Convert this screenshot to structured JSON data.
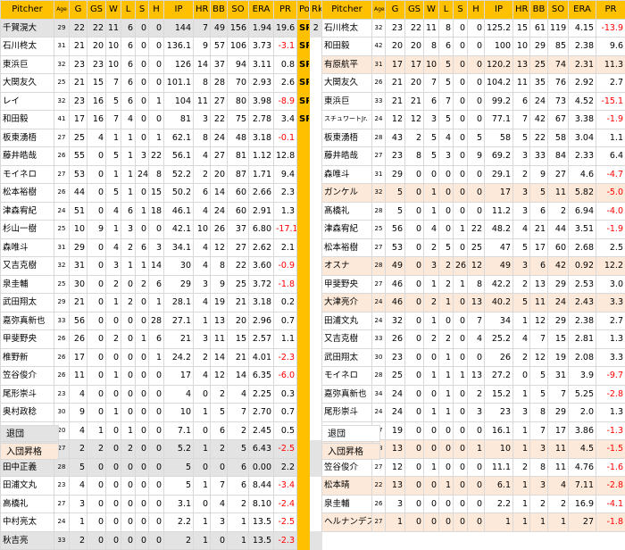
{
  "headers_left": [
    "Pitcher",
    "Age",
    "G",
    "GS",
    "W",
    "L",
    "S",
    "H",
    "IP",
    "HR",
    "BB",
    "SO",
    "ERA",
    "PR",
    "Po",
    "Rk"
  ],
  "headers_right": [
    "Pitcher",
    "Age",
    "G",
    "GS",
    "W",
    "L",
    "S",
    "H",
    "IP",
    "HR",
    "BB",
    "SO",
    "ERA",
    "PR"
  ],
  "left_rows": [
    {
      "style": "gray",
      "pos": "SP",
      "c": [
        "千賀滉大",
        "29",
        "22",
        "22",
        "11",
        "6",
        "0",
        "0",
        "144",
        "7",
        "49",
        "156",
        "1.94",
        "19.6",
        "2"
      ]
    },
    {
      "style": "",
      "pos": "SP",
      "c": [
        "石川柊太",
        "31",
        "21",
        "20",
        "10",
        "6",
        "0",
        "0",
        "136.1",
        "9",
        "57",
        "106",
        "3.73",
        "-3.1",
        ""
      ]
    },
    {
      "style": "",
      "pos": "SP",
      "c": [
        "東浜巨",
        "32",
        "23",
        "23",
        "10",
        "6",
        "0",
        "0",
        "126",
        "14",
        "37",
        "94",
        "3.11",
        "0.8",
        ""
      ]
    },
    {
      "style": "",
      "pos": "SP",
      "c": [
        "大関友久",
        "25",
        "21",
        "15",
        "7",
        "6",
        "0",
        "0",
        "101.1",
        "8",
        "28",
        "70",
        "2.93",
        "2.6",
        ""
      ]
    },
    {
      "style": "",
      "pos": "SP",
      "c": [
        "レイ",
        "32",
        "23",
        "16",
        "5",
        "6",
        "0",
        "1",
        "104",
        "11",
        "27",
        "80",
        "3.98",
        "-8.9",
        ""
      ]
    },
    {
      "style": "",
      "pos": "SP",
      "c": [
        "和田毅",
        "41",
        "17",
        "16",
        "7",
        "4",
        "0",
        "0",
        "81",
        "3",
        "22",
        "75",
        "2.78",
        "3.4",
        ""
      ]
    },
    {
      "style": "",
      "pos": "",
      "c": [
        "板東湧梧",
        "27",
        "25",
        "4",
        "1",
        "1",
        "0",
        "1",
        "62.1",
        "8",
        "24",
        "48",
        "3.18",
        "-0.1",
        ""
      ]
    },
    {
      "style": "",
      "pos": "",
      "c": [
        "藤井皓哉",
        "26",
        "55",
        "0",
        "5",
        "1",
        "3",
        "22",
        "56.1",
        "4",
        "27",
        "81",
        "1.12",
        "12.8",
        ""
      ]
    },
    {
      "style": "",
      "pos": "",
      "c": [
        "モイネロ",
        "27",
        "53",
        "0",
        "1",
        "1",
        "24",
        "8",
        "52.2",
        "2",
        "20",
        "87",
        "1.71",
        "9.4",
        ""
      ]
    },
    {
      "style": "",
      "pos": "",
      "c": [
        "松本裕樹",
        "26",
        "44",
        "0",
        "5",
        "1",
        "0",
        "15",
        "50.2",
        "6",
        "14",
        "60",
        "2.66",
        "2.3",
        ""
      ]
    },
    {
      "style": "",
      "pos": "",
      "c": [
        "津森宥紀",
        "24",
        "51",
        "0",
        "4",
        "6",
        "1",
        "18",
        "46.1",
        "4",
        "24",
        "60",
        "2.91",
        "1.3",
        ""
      ]
    },
    {
      "style": "",
      "pos": "",
      "c": [
        "杉山一樹",
        "25",
        "10",
        "9",
        "1",
        "3",
        "0",
        "0",
        "42.1",
        "10",
        "26",
        "37",
        "6.80",
        "-17.1",
        ""
      ]
    },
    {
      "style": "",
      "pos": "",
      "c": [
        "森唯斗",
        "31",
        "29",
        "0",
        "4",
        "2",
        "6",
        "3",
        "34.1",
        "4",
        "12",
        "27",
        "2.62",
        "2.1",
        ""
      ]
    },
    {
      "style": "",
      "pos": "",
      "c": [
        "又吉克樹",
        "32",
        "31",
        "0",
        "3",
        "1",
        "1",
        "14",
        "30",
        "4",
        "8",
        "22",
        "3.60",
        "-0.9",
        ""
      ]
    },
    {
      "style": "",
      "pos": "",
      "c": [
        "泉圭輔",
        "25",
        "30",
        "0",
        "2",
        "0",
        "2",
        "6",
        "29",
        "3",
        "9",
        "25",
        "3.72",
        "-1.8",
        ""
      ]
    },
    {
      "style": "",
      "pos": "",
      "c": [
        "武田翔太",
        "29",
        "21",
        "0",
        "1",
        "2",
        "0",
        "1",
        "28.1",
        "4",
        "19",
        "21",
        "3.18",
        "0.2",
        ""
      ]
    },
    {
      "style": "",
      "pos": "",
      "c": [
        "嘉弥真新也",
        "33",
        "56",
        "0",
        "0",
        "0",
        "0",
        "28",
        "27.1",
        "1",
        "13",
        "20",
        "2.96",
        "0.7",
        ""
      ]
    },
    {
      "style": "",
      "pos": "",
      "c": [
        "甲斐野央",
        "26",
        "26",
        "0",
        "2",
        "0",
        "1",
        "6",
        "21",
        "3",
        "11",
        "15",
        "2.57",
        "1.1",
        ""
      ]
    },
    {
      "style": "",
      "pos": "",
      "c": [
        "椎野新",
        "26",
        "17",
        "0",
        "0",
        "0",
        "0",
        "1",
        "24.2",
        "2",
        "14",
        "21",
        "4.01",
        "-2.3",
        ""
      ]
    },
    {
      "style": "",
      "pos": "",
      "c": [
        "笠谷俊介",
        "26",
        "11",
        "0",
        "1",
        "0",
        "0",
        "0",
        "17",
        "4",
        "12",
        "14",
        "6.35",
        "-6.0",
        ""
      ]
    },
    {
      "style": "",
      "pos": "",
      "c": [
        "尾形崇斗",
        "23",
        "4",
        "0",
        "0",
        "0",
        "0",
        "0",
        "4",
        "0",
        "2",
        "4",
        "2.25",
        "0.3",
        ""
      ]
    },
    {
      "style": "",
      "pos": "",
      "c": [
        "奥村政稔",
        "30",
        "9",
        "0",
        "1",
        "0",
        "0",
        "0",
        "10",
        "1",
        "5",
        "7",
        "2.70",
        "0.7",
        ""
      ]
    },
    {
      "style": "",
      "pos": "",
      "c": [
        "田上奏大",
        "20",
        "4",
        "1",
        "0",
        "1",
        "0",
        "0",
        "7.1",
        "0",
        "6",
        "2",
        "2.45",
        "0.5",
        ""
      ]
    },
    {
      "style": "gray",
      "pos": "",
      "c": [
        "大竹耕太郎",
        "27",
        "2",
        "2",
        "0",
        "2",
        "0",
        "0",
        "5.2",
        "1",
        "2",
        "5",
        "6.43",
        "-2.5",
        ""
      ]
    },
    {
      "style": "gray",
      "pos": "",
      "c": [
        "田中正義",
        "28",
        "5",
        "0",
        "0",
        "0",
        "0",
        "0",
        "5",
        "0",
        "0",
        "6",
        "0.00",
        "2.2",
        ""
      ]
    },
    {
      "style": "",
      "pos": "",
      "c": [
        "田浦文丸",
        "23",
        "4",
        "0",
        "0",
        "0",
        "0",
        "0",
        "5",
        "1",
        "7",
        "6",
        "8.44",
        "-3.4",
        ""
      ]
    },
    {
      "style": "",
      "pos": "",
      "c": [
        "高橋礼",
        "27",
        "3",
        "0",
        "0",
        "0",
        "0",
        "0",
        "3.1",
        "0",
        "4",
        "2",
        "8.10",
        "-2.4",
        ""
      ]
    },
    {
      "style": "",
      "pos": "",
      "c": [
        "中村亮太",
        "24",
        "1",
        "0",
        "0",
        "0",
        "0",
        "0",
        "2.2",
        "1",
        "3",
        "1",
        "13.5",
        "-2.5",
        ""
      ]
    },
    {
      "style": "gray",
      "pos": "",
      "c": [
        "秋吉亮",
        "33",
        "2",
        "0",
        "0",
        "0",
        "0",
        "0",
        "2",
        "1",
        "0",
        "1",
        "13.5",
        "-2.3",
        ""
      ]
    }
  ],
  "right_rows": [
    {
      "style": "",
      "tiny": false,
      "c": [
        "石川柊太",
        "32",
        "23",
        "22",
        "11",
        "8",
        "0",
        "0",
        "125.2",
        "15",
        "61",
        "119",
        "4.15",
        "-13.9"
      ]
    },
    {
      "style": "",
      "tiny": false,
      "c": [
        "和田毅",
        "42",
        "20",
        "20",
        "8",
        "6",
        "0",
        "0",
        "100",
        "10",
        "29",
        "85",
        "2.38",
        "9.6"
      ]
    },
    {
      "style": "peach",
      "tiny": false,
      "c": [
        "有原航平",
        "31",
        "17",
        "17",
        "10",
        "5",
        "0",
        "0",
        "120.2",
        "13",
        "25",
        "74",
        "2.31",
        "11.3"
      ]
    },
    {
      "style": "",
      "tiny": false,
      "c": [
        "大関友久",
        "26",
        "21",
        "20",
        "7",
        "5",
        "0",
        "0",
        "104.2",
        "11",
        "35",
        "76",
        "2.92",
        "2.7"
      ]
    },
    {
      "style": "",
      "tiny": false,
      "c": [
        "東浜巨",
        "33",
        "21",
        "21",
        "6",
        "7",
        "0",
        "0",
        "99.2",
        "6",
        "24",
        "73",
        "4.52",
        "-15.1"
      ]
    },
    {
      "style": "",
      "tiny": true,
      "c": [
        "スチュワートJr.",
        "24",
        "12",
        "12",
        "3",
        "5",
        "0",
        "0",
        "77.1",
        "7",
        "42",
        "67",
        "3.38",
        "-1.9"
      ]
    },
    {
      "style": "",
      "tiny": false,
      "c": [
        "板東湧梧",
        "28",
        "43",
        "2",
        "5",
        "4",
        "0",
        "5",
        "58",
        "5",
        "22",
        "58",
        "3.04",
        "1.1"
      ]
    },
    {
      "style": "",
      "tiny": false,
      "c": [
        "藤井皓哉",
        "27",
        "23",
        "8",
        "5",
        "3",
        "0",
        "9",
        "69.2",
        "3",
        "33",
        "84",
        "2.33",
        "6.4"
      ]
    },
    {
      "style": "",
      "tiny": false,
      "c": [
        "森唯斗",
        "31",
        "29",
        "0",
        "0",
        "0",
        "0",
        "0",
        "29.1",
        "2",
        "9",
        "27",
        "4.6",
        "-4.7"
      ]
    },
    {
      "style": "peach",
      "tiny": false,
      "c": [
        "ガンケル",
        "32",
        "5",
        "0",
        "1",
        "0",
        "0",
        "0",
        "17",
        "3",
        "5",
        "11",
        "5.82",
        "-5.0"
      ]
    },
    {
      "style": "",
      "tiny": false,
      "c": [
        "髙橋礼",
        "28",
        "5",
        "0",
        "1",
        "0",
        "0",
        "0",
        "11.2",
        "3",
        "6",
        "2",
        "6.94",
        "-4.0"
      ]
    },
    {
      "style": "",
      "tiny": false,
      "c": [
        "津森宥紀",
        "25",
        "56",
        "0",
        "4",
        "0",
        "1",
        "22",
        "48.2",
        "4",
        "21",
        "44",
        "3.51",
        "-1.9"
      ]
    },
    {
      "style": "",
      "tiny": false,
      "c": [
        "松本裕樹",
        "27",
        "53",
        "0",
        "2",
        "5",
        "0",
        "25",
        "47",
        "5",
        "17",
        "60",
        "2.68",
        "2.5"
      ]
    },
    {
      "style": "peach",
      "tiny": false,
      "c": [
        "オスナ",
        "28",
        "49",
        "0",
        "3",
        "2",
        "26",
        "12",
        "49",
        "3",
        "6",
        "42",
        "0.92",
        "12.2"
      ]
    },
    {
      "style": "",
      "tiny": false,
      "c": [
        "甲斐野央",
        "27",
        "46",
        "0",
        "1",
        "2",
        "1",
        "8",
        "42.2",
        "2",
        "13",
        "29",
        "2.53",
        "3.0"
      ]
    },
    {
      "style": "peach",
      "tiny": false,
      "c": [
        "大津亮介",
        "24",
        "46",
        "0",
        "2",
        "1",
        "0",
        "13",
        "40.2",
        "5",
        "11",
        "24",
        "2.43",
        "3.3"
      ]
    },
    {
      "style": "",
      "tiny": false,
      "c": [
        "田浦文丸",
        "24",
        "32",
        "0",
        "1",
        "0",
        "0",
        "7",
        "34",
        "1",
        "12",
        "29",
        "2.38",
        "2.7"
      ]
    },
    {
      "style": "",
      "tiny": false,
      "c": [
        "又吉克樹",
        "33",
        "26",
        "0",
        "2",
        "2",
        "0",
        "4",
        "25.2",
        "4",
        "7",
        "15",
        "2.81",
        "1.3"
      ]
    },
    {
      "style": "",
      "tiny": false,
      "c": [
        "武田翔太",
        "30",
        "23",
        "0",
        "0",
        "1",
        "0",
        "0",
        "26",
        "2",
        "12",
        "19",
        "2.08",
        "3.3"
      ]
    },
    {
      "style": "",
      "tiny": false,
      "c": [
        "モイネロ",
        "28",
        "25",
        "0",
        "1",
        "1",
        "1",
        "13",
        "27.2",
        "0",
        "5",
        "31",
        "3.9",
        "-9.7"
      ]
    },
    {
      "style": "",
      "tiny": false,
      "c": [
        "嘉弥真新也",
        "34",
        "24",
        "0",
        "0",
        "1",
        "0",
        "2",
        "15.2",
        "1",
        "5",
        "7",
        "5.25",
        "-2.8"
      ]
    },
    {
      "style": "",
      "tiny": false,
      "c": [
        "尾形崇斗",
        "24",
        "24",
        "0",
        "1",
        "1",
        "0",
        "3",
        "23",
        "3",
        "8",
        "29",
        "2.0",
        "1.3"
      ]
    },
    {
      "style": "",
      "tiny": false,
      "c": [
        "椎野新",
        "27",
        "19",
        "0",
        "0",
        "0",
        "0",
        "0",
        "16.1",
        "1",
        "7",
        "17",
        "3.86",
        "-1.3"
      ]
    },
    {
      "style": "peach",
      "tiny": false,
      "c": [
        "古川侑利",
        "28",
        "13",
        "0",
        "0",
        "0",
        "0",
        "1",
        "10",
        "1",
        "3",
        "11",
        "4.5",
        "-1.5"
      ]
    },
    {
      "style": "",
      "tiny": false,
      "c": [
        "笠谷俊介",
        "27",
        "12",
        "0",
        "1",
        "0",
        "0",
        "0",
        "11.1",
        "2",
        "8",
        "11",
        "4.76",
        "-1.6"
      ]
    },
    {
      "style": "peach",
      "tiny": false,
      "c": [
        "松本晴",
        "22",
        "13",
        "0",
        "0",
        "1",
        "0",
        "0",
        "6.1",
        "1",
        "3",
        "4",
        "7.11",
        "-2.8"
      ]
    },
    {
      "style": "",
      "tiny": false,
      "c": [
        "泉圭輔",
        "26",
        "3",
        "0",
        "0",
        "0",
        "0",
        "0",
        "2.2",
        "1",
        "2",
        "2",
        "16.9",
        "-4.1"
      ]
    },
    {
      "style": "peach",
      "tiny": false,
      "c": [
        "ヘルナンデス",
        "27",
        "1",
        "0",
        "0",
        "0",
        "0",
        "0",
        "1",
        "1",
        "1",
        "1",
        "27",
        "-1.8"
      ]
    }
  ],
  "legend": {
    "retired": "退団",
    "joined_promoted": "入団昇格"
  },
  "colors": {
    "header": "#ffc000",
    "retired_row": "#e3e3e3",
    "joined_row": "#fde9d9",
    "negative_text": "#ff0000"
  }
}
